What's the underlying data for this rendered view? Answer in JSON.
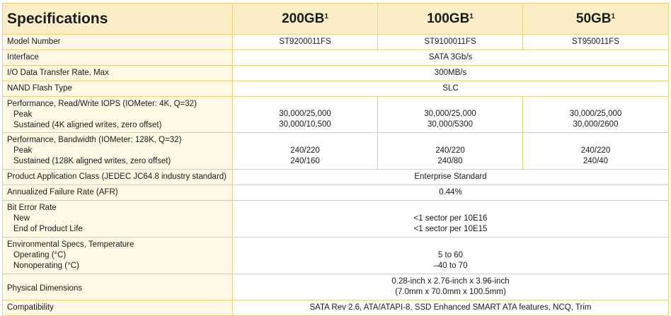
{
  "header": {
    "title": "Specifications",
    "cap1": "200GB",
    "cap2": "100GB",
    "cap3": "50GB",
    "footnote_mark": "1"
  },
  "rows": {
    "model": {
      "label": "Model Number",
      "v1": "ST9200011FS",
      "v2": "ST9100011FS",
      "v3": "ST950011FS"
    },
    "interface": {
      "label": "Interface",
      "value": "SATA 3Gb/s"
    },
    "io_rate": {
      "label": "I/O Data Transfer Rate, Max",
      "value": "300MB/s"
    },
    "nand": {
      "label": "NAND Flash Type",
      "value": "SLC"
    },
    "iops": {
      "label": "Performance, Read/Write IOPS (IOMeter: 4K, Q=32)",
      "sub1": "Peak",
      "sub2": "Sustained (4K aligned writes, zero offset)",
      "c1": {
        "peak": "30,000/25,000",
        "sustained": "30,000/10,500"
      },
      "c2": {
        "peak": "30,000/25,000",
        "sustained": "30,000/5300"
      },
      "c3": {
        "peak": "30,000/25,000",
        "sustained": "30,000/2600"
      }
    },
    "bandwidth": {
      "label": "Performance, Bandwidth (IOMeter: 128K, Q=32)",
      "sub1": "Peak",
      "sub2": "Sustained (128K aligned writes, zero offset)",
      "c1": {
        "peak": "240/220",
        "sustained": "240/160"
      },
      "c2": {
        "peak": "240/220",
        "sustained": "240/80"
      },
      "c3": {
        "peak": "240/220",
        "sustained": "240/40"
      }
    },
    "app_class": {
      "label": "Product Application Class (JEDEC JC64.8 industry standard)",
      "value": "Enterprise Standard"
    },
    "afr": {
      "label": "Annualized Failure Rate (AFR)",
      "value": "0.44%"
    },
    "ber": {
      "label": "Bit Error Rate",
      "sub1": "New",
      "sub2": "End of Product Life",
      "v1": "<1 sector per 10E16",
      "v2": "<1 sector per 10E15"
    },
    "env": {
      "label": "Environmental Specs, Temperature",
      "sub1": "Operating (°C)",
      "sub2": "Nonoperating (°C)",
      "v1": "5 to 60",
      "v2": "–40 to 70"
    },
    "dims": {
      "label": "Physical Dimensions",
      "v1": "0.28-inch x 2.76-inch x 3.96-inch",
      "v2": "(7.0mm x 70.0mm x 100.5mm)"
    },
    "compat": {
      "label": "Compatibility",
      "value": "SATA Rev 2.6, ATA/ATAPI-8,  SSD Enhanced SMART ATA features, NCQ, Trim"
    }
  }
}
